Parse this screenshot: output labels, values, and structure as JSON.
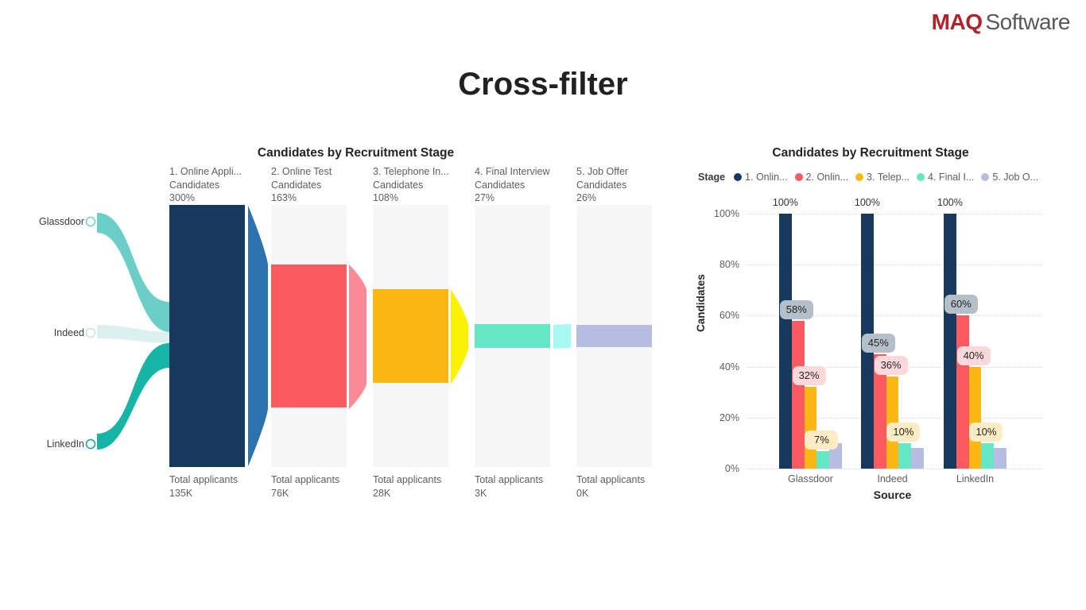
{
  "page": {
    "title": "Cross-filter"
  },
  "logo": {
    "maq": "MAQ",
    "software": "Software",
    "maq_color": "#b0232a",
    "software_color": "#56585a"
  },
  "chart_data": [
    {
      "type": "funnel",
      "title": "Candidates by Recruitment Stage",
      "max_value": 300,
      "total_label": "Total applicants",
      "sources": [
        {
          "label": "Glassdoor",
          "flow_color": "#6ccfc7",
          "ring_color": "#76cfc7"
        },
        {
          "label": "Indeed",
          "flow_color": "#dcf1ef",
          "ring_color": "#c9e2e0"
        },
        {
          "label": "LinkedIn",
          "flow_color": "#16b5a6",
          "ring_color": "#21a396"
        }
      ],
      "stages": [
        {
          "label": "1. Online Appli...",
          "sublabel": "Candidates",
          "percent": "300%",
          "value": 300,
          "total": "135K",
          "color": "#17395e"
        },
        {
          "label": "2. Online Test",
          "sublabel": "Candidates",
          "percent": "163%",
          "value": 163,
          "total": "76K",
          "color": "#fa5a60"
        },
        {
          "label": "3. Telephone In...",
          "sublabel": "Candidates",
          "percent": "108%",
          "value": 108,
          "total": "28K",
          "color": "#fcb714"
        },
        {
          "label": "4. Final Interview",
          "sublabel": "Candidates",
          "percent": "27%",
          "value": 27,
          "total": "3K",
          "color": "#65e6c5"
        },
        {
          "label": "5. Job Offer",
          "sublabel": "Candidates",
          "percent": "26%",
          "value": 26,
          "total": "0K",
          "color": "#b7bde2"
        }
      ],
      "connector_colors": [
        "#2c72ae",
        "#fb8a96",
        "#fbf104",
        "#a8f9f2"
      ]
    },
    {
      "type": "bar",
      "title": "Candidates by Recruitment Stage",
      "legend_title": "Stage",
      "legend": [
        {
          "label": "1. Onlin...",
          "color": "#17395e"
        },
        {
          "label": "2. Onlin...",
          "color": "#fa5a60"
        },
        {
          "label": "3. Telep...",
          "color": "#fcb714"
        },
        {
          "label": "4. Final I...",
          "color": "#65e6c5"
        },
        {
          "label": "5. Job O...",
          "color": "#b7bde2"
        }
      ],
      "xlabel": "Source",
      "ylabel": "Candidates",
      "ylim": [
        0,
        100
      ],
      "y_ticks": [
        "100%",
        "80%",
        "60%",
        "40%",
        "20%",
        "0%"
      ],
      "categories": [
        "Glassdoor",
        "Indeed",
        "LinkedIn"
      ],
      "series": [
        {
          "name": "1. Online Application",
          "values": [
            100,
            100,
            100
          ]
        },
        {
          "name": "2. Online Test",
          "values": [
            58,
            45,
            60
          ]
        },
        {
          "name": "3. Telephone Interview",
          "values": [
            32,
            36,
            40
          ]
        },
        {
          "name": "4. Final Interview",
          "values": [
            7,
            10,
            10
          ]
        },
        {
          "name": "5. Job Offer",
          "values": [
            10,
            8,
            8
          ]
        }
      ],
      "bar_labels": [
        [
          "100%",
          "58%",
          "32%",
          "7%",
          null
        ],
        [
          "100%",
          "45%",
          "36%",
          "10%",
          null
        ],
        [
          "100%",
          "60%",
          "40%",
          "10%",
          null
        ]
      ],
      "callout_colors": [
        null,
        "#b5bfc9",
        "#fbd9db",
        "#fdecc3",
        null
      ]
    }
  ]
}
